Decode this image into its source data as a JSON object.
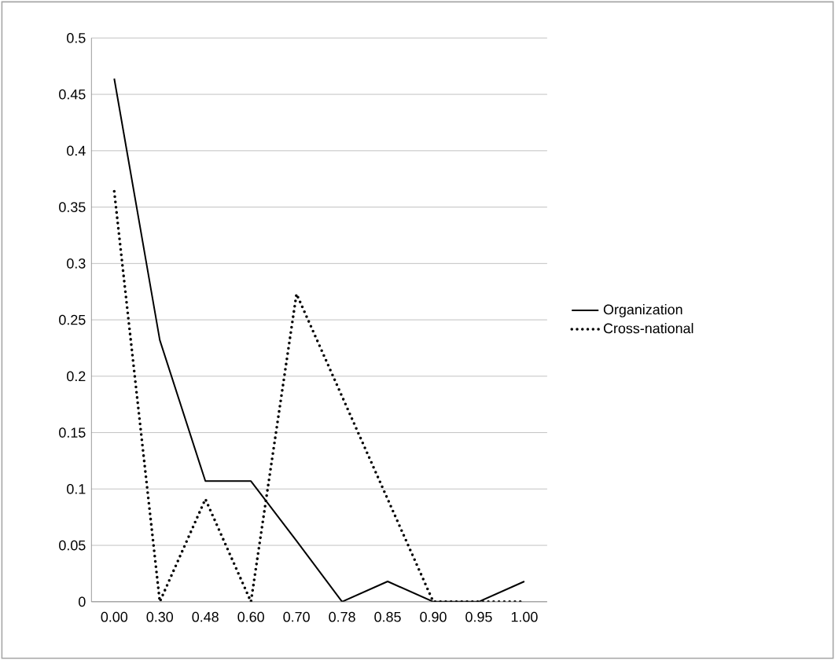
{
  "chart_data": {
    "type": "line",
    "categories": [
      "0.00",
      "0.30",
      "0.48",
      "0.60",
      "0.70",
      "0.78",
      "0.85",
      "0.90",
      "0.95",
      "1.00"
    ],
    "series": [
      {
        "name": "Organization",
        "color": "#000000",
        "line_style": "solid",
        "values": [
          0.464,
          0.232,
          0.107,
          0.107,
          0.054,
          0,
          0.018,
          0,
          0,
          0.018
        ]
      },
      {
        "name": "Cross-national",
        "color": "#000000",
        "line_style": "dotted",
        "values": [
          0.364,
          0,
          0.091,
          0,
          0.273,
          0.182,
          0.091,
          0,
          0,
          0
        ]
      }
    ],
    "ylim": [
      0,
      0.5
    ],
    "yticks": [
      0,
      0.05,
      0.1,
      0.15,
      0.2,
      0.25,
      0.3,
      0.35,
      0.4,
      0.45,
      0.5
    ],
    "grid": "y",
    "legend": "right",
    "marker": "none"
  }
}
